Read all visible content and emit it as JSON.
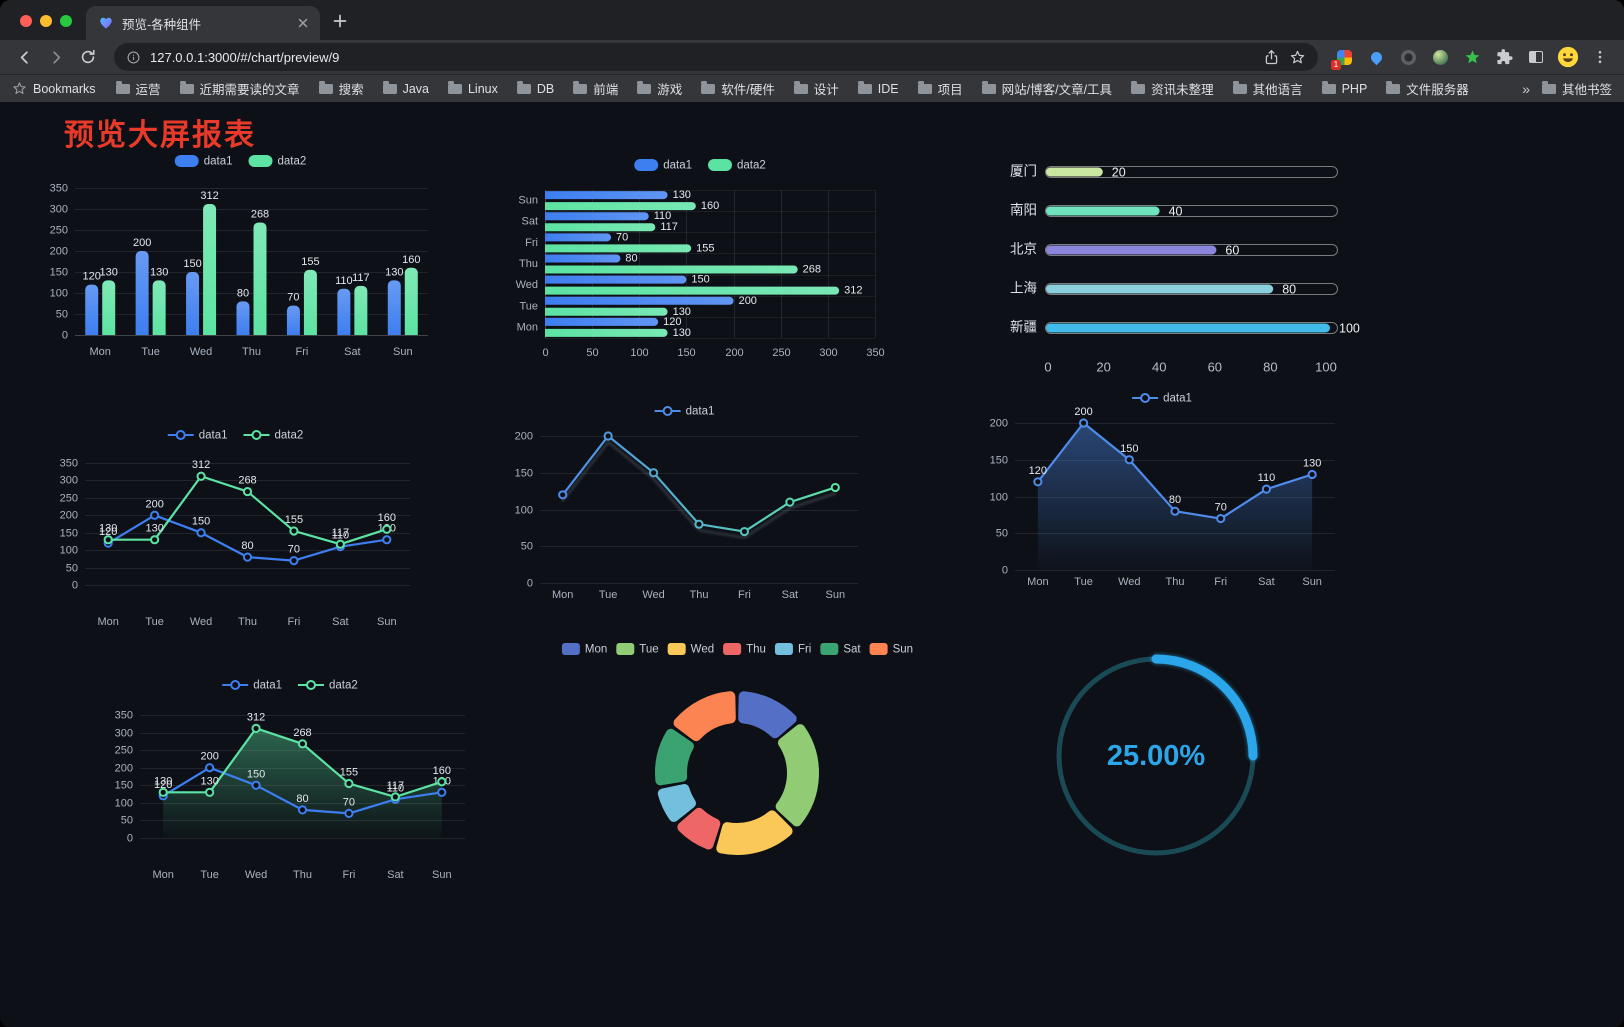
{
  "browser": {
    "window_controls": [
      "close",
      "minimize",
      "maximize"
    ],
    "tab": {
      "title": "预览-各种组件"
    },
    "url": "127.0.0.1:3000/#/chart/preview/9",
    "extension_badge": "1",
    "icons": [
      "back-icon",
      "forward-icon",
      "reload-icon",
      "info-icon",
      "share-icon",
      "bookmark-star-icon",
      "extension-colorful-icon",
      "extension-pin-icon",
      "extension-dark-icon",
      "extension-avatar-icon",
      "extension-star-icon",
      "puzzle-icon",
      "reading-mode-icon",
      "profile-avatar",
      "menu-kebab-icon",
      "new-tab-icon",
      "close-tab-icon",
      "folder-icon"
    ],
    "bookmarks_bar": {
      "root_label": "Bookmarks",
      "items": [
        "运营",
        "近期需要读的文章",
        "搜索",
        "Java",
        "Linux",
        "DB",
        "前端",
        "游戏",
        "软件/硬件",
        "设计",
        "IDE",
        "项目",
        "网站/博客/文章/工具",
        "资讯未整理",
        "其他语言",
        "PHP",
        "文件服务器"
      ],
      "overflow": "»",
      "other_bookmarks": "其他书签"
    }
  },
  "page": {
    "title": "预览大屏报表",
    "title_color": "#e83a2a",
    "background": "#0d1016"
  },
  "chart_data": [
    {
      "id": "grouped-bar",
      "type": "bar",
      "categories": [
        "Mon",
        "Tue",
        "Wed",
        "Thu",
        "Fri",
        "Sat",
        "Sun"
      ],
      "series": [
        {
          "name": "data1",
          "color": "#3D7EF0",
          "values": [
            120,
            200,
            150,
            80,
            70,
            110,
            130
          ]
        },
        {
          "name": "data2",
          "color": "#5CE3A3",
          "values": [
            130,
            130,
            312,
            268,
            155,
            117,
            160
          ]
        }
      ],
      "ylim": [
        0,
        350
      ],
      "yticks": [
        0,
        50,
        100,
        150,
        200,
        250,
        300,
        350
      ],
      "value_labels": true,
      "legend_position": "top"
    },
    {
      "id": "grouped-bar-horizontal",
      "type": "bar-horizontal",
      "categories": [
        "Mon",
        "Tue",
        "Wed",
        "Thu",
        "Fri",
        "Sat",
        "Sun"
      ],
      "series": [
        {
          "name": "data1",
          "color": "#3D7EF0",
          "values": [
            120,
            200,
            150,
            80,
            70,
            110,
            130
          ]
        },
        {
          "name": "data2",
          "color": "#5CE3A3",
          "values": [
            130,
            130,
            312,
            268,
            155,
            117,
            160
          ]
        }
      ],
      "xlim": [
        0,
        350
      ],
      "xticks": [
        0,
        50,
        100,
        150,
        200,
        250,
        300,
        350
      ],
      "value_labels": true,
      "legend_position": "top"
    },
    {
      "id": "city-progress",
      "type": "progress-bar",
      "categories": [
        "厦门",
        "南阳",
        "北京",
        "上海",
        "新疆"
      ],
      "values": [
        20,
        40,
        60,
        80,
        100
      ],
      "colors": [
        "#CBE8A2",
        "#6FE3BC",
        "#8C85DC",
        "#8AD0DC",
        "#41BBEA"
      ],
      "xlim": [
        0,
        100
      ],
      "xticks": [
        0,
        20,
        40,
        60,
        80,
        100
      ]
    },
    {
      "id": "line-dual",
      "type": "line",
      "categories": [
        "Mon",
        "Tue",
        "Wed",
        "Thu",
        "Fri",
        "Sat",
        "Sun"
      ],
      "series": [
        {
          "name": "data1",
          "color": "#3D7EF0",
          "values": [
            120,
            200,
            150,
            80,
            70,
            110,
            130
          ]
        },
        {
          "name": "data2",
          "color": "#5CE3A3",
          "values": [
            130,
            130,
            312,
            268,
            155,
            117,
            160
          ]
        }
      ],
      "ylim": [
        0,
        350
      ],
      "yticks": [
        0,
        50,
        100,
        150,
        200,
        250,
        300,
        350
      ],
      "value_labels": true,
      "legend_position": "top"
    },
    {
      "id": "line-gradient",
      "type": "line",
      "categories": [
        "Mon",
        "Tue",
        "Wed",
        "Thu",
        "Fri",
        "Sat",
        "Sun"
      ],
      "series": [
        {
          "name": "data1",
          "color": "#4E8BEA",
          "color_end": "#5CE3A3",
          "values": [
            120,
            200,
            150,
            80,
            70,
            110,
            130
          ]
        }
      ],
      "ylim": [
        0,
        200
      ],
      "yticks": [
        0,
        50,
        100,
        150,
        200
      ],
      "value_labels": false,
      "shadow": true,
      "legend_position": "top"
    },
    {
      "id": "line-area",
      "type": "area",
      "categories": [
        "Mon",
        "Tue",
        "Wed",
        "Thu",
        "Fri",
        "Sat",
        "Sun"
      ],
      "series": [
        {
          "name": "data1",
          "color": "#4E8BEA",
          "area": true,
          "values": [
            120,
            200,
            150,
            80,
            70,
            110,
            130
          ]
        }
      ],
      "ylim": [
        0,
        200
      ],
      "yticks": [
        0,
        50,
        100,
        150,
        200
      ],
      "value_labels": true,
      "legend_position": "top"
    },
    {
      "id": "line-dual-area",
      "type": "area",
      "categories": [
        "Mon",
        "Tue",
        "Wed",
        "Thu",
        "Fri",
        "Sat",
        "Sun"
      ],
      "series": [
        {
          "name": "data1",
          "color": "#3D7EF0",
          "values": [
            120,
            200,
            150,
            80,
            70,
            110,
            130
          ]
        },
        {
          "name": "data2",
          "color": "#5CE3A3",
          "area": true,
          "values": [
            130,
            130,
            312,
            268,
            155,
            117,
            160
          ]
        }
      ],
      "ylim": [
        0,
        350
      ],
      "yticks": [
        0,
        50,
        100,
        150,
        200,
        250,
        300,
        350
      ],
      "value_labels": true,
      "legend_position": "top"
    },
    {
      "id": "donut",
      "type": "pie",
      "categories": [
        "Mon",
        "Tue",
        "Wed",
        "Thu",
        "Fri",
        "Sat",
        "Sun"
      ],
      "values": [
        120,
        200,
        150,
        80,
        70,
        110,
        130
      ],
      "colors": [
        "#5470C6",
        "#91CC75",
        "#FAC858",
        "#EE6666",
        "#73C0DE",
        "#3BA272",
        "#FC8452"
      ],
      "legend_position": "top"
    },
    {
      "id": "gauge",
      "type": "gauge",
      "value": 25,
      "label": "25.00%",
      "color": "#2BA6EA",
      "track_color": "#1B4A57"
    }
  ]
}
